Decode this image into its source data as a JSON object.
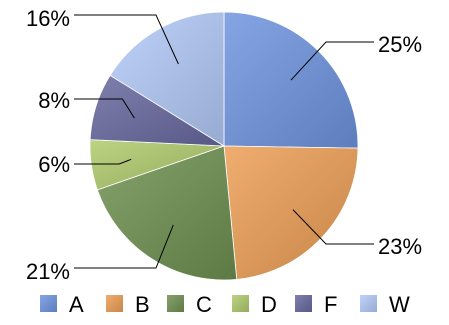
{
  "chart_data": {
    "type": "pie",
    "categories": [
      "A",
      "B",
      "C",
      "D",
      "F",
      "W"
    ],
    "values": [
      25,
      23,
      21,
      6,
      8,
      16
    ],
    "value_labels": [
      "25%",
      "23%",
      "21%",
      "6%",
      "8%",
      "16%"
    ],
    "colors": [
      "#6f8fcf",
      "#d9975a",
      "#6f8c56",
      "#a7bd6e",
      "#6a6a98",
      "#a9bde4"
    ],
    "start_angle_deg": -90,
    "direction": "clockwise",
    "legend": "bottom"
  }
}
